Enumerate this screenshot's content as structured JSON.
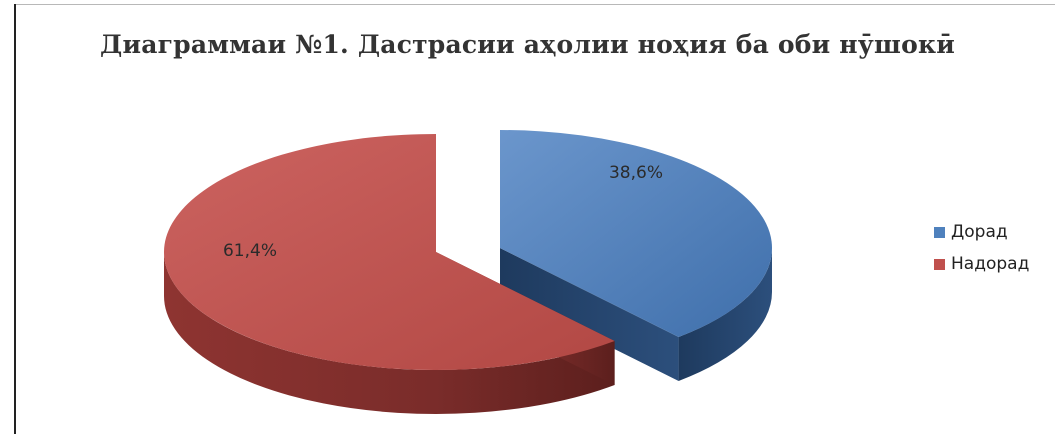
{
  "chart_data": {
    "type": "pie",
    "title": "Диаграммаи №1. Дастрасии аҳолии ноҳия ба оби нӯшокӣ",
    "slices": [
      {
        "label": "Дорад",
        "value": 38.6,
        "value_label": "38,6%",
        "color": "#4f81bd"
      },
      {
        "label": "Надорад",
        "value": 61.4,
        "value_label": "61,4%",
        "color": "#c0504d"
      }
    ],
    "style": "3d-exploded",
    "legend_position": "right"
  }
}
